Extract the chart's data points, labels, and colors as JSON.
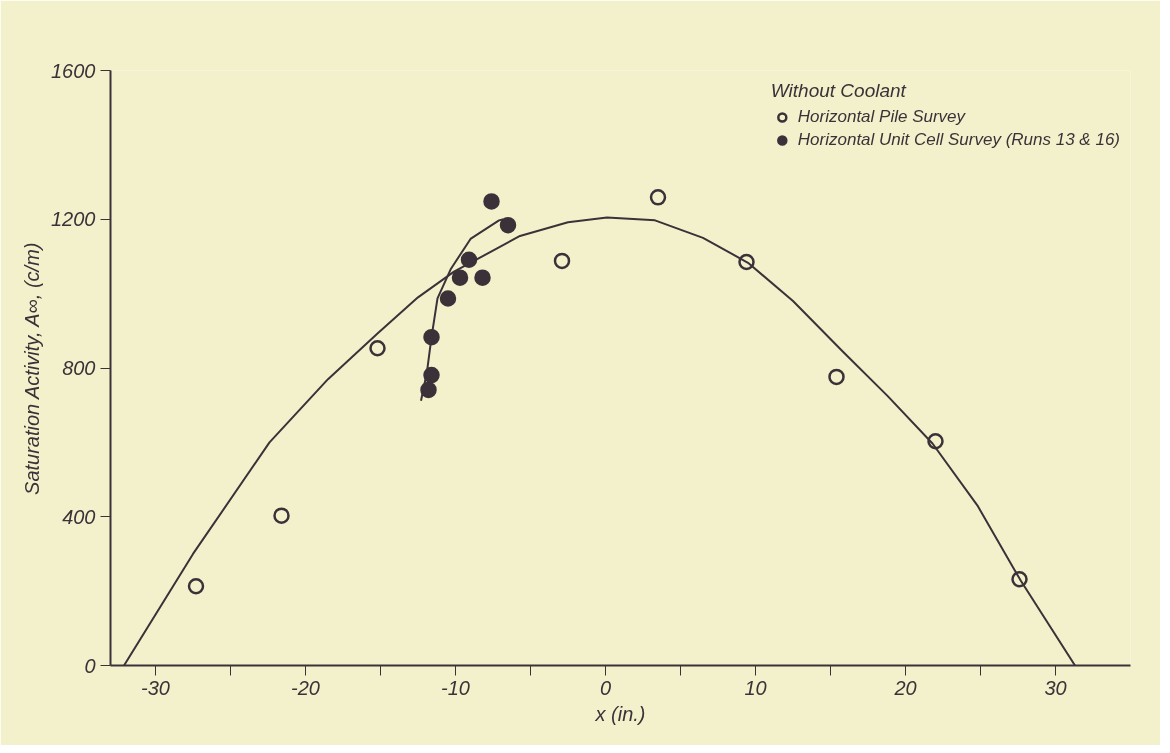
{
  "chart_data": {
    "type": "scatter",
    "xlabel": "x (in.)",
    "ylabel": "Saturation Activity, A∞, (c/m)",
    "legend_title": "Without Coolant",
    "xlim": [
      -33,
      35
    ],
    "ylim": [
      0,
      1600
    ],
    "xticks": [
      -30,
      {
        "value": -25,
        "label": null
      },
      -20,
      {
        "value": -15,
        "label": null
      },
      -10,
      {
        "value": -5,
        "label": null
      },
      0,
      {
        "value": 5,
        "label": null
      },
      10,
      {
        "value": 15,
        "label": null
      },
      20,
      {
        "value": 25,
        "label": null
      },
      30
    ],
    "yticks": [
      0,
      400,
      800,
      1200,
      1600
    ],
    "grid": false,
    "legend": "top right",
    "series": [
      {
        "name": "Horizontal Pile Survey",
        "marker": "circle",
        "color": "#3a3238",
        "x": [
          -27.3,
          -21.6,
          -15.2,
          -2.9,
          3.5,
          9.4,
          15.4,
          22.0,
          27.6
        ],
        "values": [
          213,
          403,
          853,
          1088,
          1259,
          1085,
          776,
          603,
          232
        ]
      },
      {
        "name": "Horizontal Unit Cell Survey (Runs 13 & 16)",
        "marker": "circle",
        "color": "#3a3238",
        "x": [
          -7.6,
          -6.5,
          -9.1,
          -9.7,
          -8.2,
          -10.5,
          -11.6,
          -11.6,
          -11.8
        ],
        "values": [
          1248,
          1184,
          1091,
          1043,
          1043,
          987,
          883,
          781,
          741
        ]
      },
      {
        "type": "line",
        "color": "#3a3238",
        "x": [
          -32.1,
          -27.5,
          -22.4,
          -18.5,
          -15.2,
          -12.5,
          -10.1,
          -5.7,
          -2.5,
          0.1,
          3.3,
          6.5,
          9.5,
          12.5,
          15.8,
          18.8,
          21.8,
          24.8,
          27.7,
          31.3
        ],
        "values": [
          0,
          300,
          600,
          770,
          893,
          990,
          1059,
          1155,
          1192,
          1205,
          1197,
          1150,
          1083,
          980,
          845,
          725,
          597,
          430,
          227,
          0
        ]
      },
      {
        "type": "line",
        "color": "#3a3238",
        "x": [
          -12.3,
          -11.9,
          -11.6,
          -11.2,
          -10.3,
          -9.0,
          -7.1,
          -6.8
        ],
        "values": [
          712,
          790,
          883,
          987,
          1067,
          1147,
          1197,
          1200
        ]
      }
    ]
  }
}
